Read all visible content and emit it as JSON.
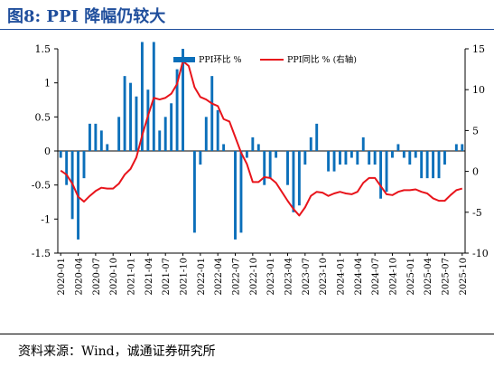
{
  "figure": {
    "title": "图8:   PPI 降幅仍较大",
    "source": "资料来源：Wind，诚通证券研究所"
  },
  "chart_data": {
    "type": "bar+line",
    "categories": [
      "2020-01",
      "2020-02",
      "2020-03",
      "2020-04",
      "2020-05",
      "2020-06",
      "2020-07",
      "2020-08",
      "2020-09",
      "2020-10",
      "2020-11",
      "2020-12",
      "2021-01",
      "2021-02",
      "2021-03",
      "2021-04",
      "2021-05",
      "2021-06",
      "2021-07",
      "2021-08",
      "2021-09",
      "2021-10",
      "2021-11",
      "2021-12",
      "2022-01",
      "2022-02",
      "2022-03",
      "2022-04",
      "2022-05",
      "2022-06",
      "2022-07",
      "2022-08",
      "2022-09",
      "2022-10",
      "2022-11",
      "2022-12",
      "2023-01",
      "2023-02",
      "2023-03",
      "2023-04",
      "2023-05",
      "2023-06",
      "2023-07",
      "2023-08",
      "2023-09",
      "2023-10",
      "2023-11",
      "2023-12",
      "2024-01",
      "2024-02",
      "2024-03",
      "2024-04",
      "2024-05",
      "2024-06",
      "2024-07",
      "2024-08",
      "2024-09",
      "2024-10",
      "2024-11",
      "2024-12",
      "2025-01",
      "2025-02",
      "2025-03",
      "2025-04",
      "2025-05",
      "2025-06",
      "2025-07",
      "2025-08",
      "2025-09",
      "2025-10"
    ],
    "tick_labels": [
      "2020-01",
      "2020-04",
      "2020-07",
      "2020-10",
      "2021-01",
      "2021-04",
      "2021-07",
      "2021-10",
      "2022-01",
      "2022-04",
      "2022-07",
      "2022-10",
      "2023-01",
      "2023-04",
      "2023-07",
      "2023-10",
      "2024-01",
      "2024-04",
      "2024-07",
      "2024-10",
      "2025-01",
      "2025-04",
      "2025-07",
      "2025-10"
    ],
    "series": [
      {
        "name": "PPI环比 %",
        "type": "bar",
        "axis": "left",
        "color": "#0b6fba",
        "values": [
          -0.1,
          -0.5,
          -1.0,
          -1.3,
          -0.4,
          0.4,
          0.4,
          0.3,
          0.1,
          0.0,
          0.5,
          1.1,
          1.0,
          0.8,
          1.6,
          0.9,
          1.6,
          0.3,
          0.5,
          0.7,
          1.2,
          1.5,
          0.0,
          -1.2,
          -0.2,
          0.5,
          1.1,
          0.6,
          0.1,
          0.0,
          -1.3,
          -1.2,
          -0.1,
          0.2,
          0.1,
          -0.5,
          -0.4,
          -0.1,
          0.0,
          -0.5,
          -0.9,
          -0.8,
          -0.2,
          0.2,
          0.4,
          0.0,
          -0.3,
          -0.3,
          -0.2,
          -0.2,
          -0.1,
          -0.2,
          0.2,
          -0.2,
          -0.2,
          -0.7,
          -0.6,
          -0.1,
          0.1,
          -0.1,
          -0.2,
          -0.1,
          -0.4,
          -0.4,
          -0.4,
          -0.4,
          -0.2,
          0.0,
          0.1,
          0.1
        ]
      },
      {
        "name": "PPI同比 % (右轴)",
        "type": "line",
        "axis": "right",
        "color": "#e8141b",
        "values": [
          0.1,
          -0.4,
          -1.5,
          -3.1,
          -3.7,
          -3.0,
          -2.4,
          -2.0,
          -2.1,
          -2.1,
          -1.5,
          -0.4,
          0.3,
          1.7,
          4.4,
          6.8,
          9.0,
          8.8,
          9.0,
          9.5,
          10.7,
          13.5,
          12.9,
          10.3,
          9.1,
          8.8,
          8.3,
          8.0,
          6.4,
          6.1,
          4.2,
          2.3,
          0.9,
          -1.3,
          -1.3,
          -0.7,
          -0.8,
          -1.4,
          -2.5,
          -3.6,
          -4.6,
          -5.4,
          -4.4,
          -3.0,
          -2.5,
          -2.6,
          -3.0,
          -2.7,
          -2.5,
          -2.7,
          -2.8,
          -2.5,
          -1.4,
          -0.8,
          -0.8,
          -1.8,
          -2.8,
          -2.9,
          -2.5,
          -2.3,
          -2.3,
          -2.2,
          -2.5,
          -2.7,
          -3.3,
          -3.6,
          -3.6,
          -2.9,
          -2.3,
          -2.1
        ]
      }
    ],
    "y_left": {
      "min": -1.5,
      "max": 1.5,
      "ticks": [
        "1.5",
        "1",
        "0.5",
        "0",
        "-0.5",
        "-1",
        "-1.5"
      ]
    },
    "y_right": {
      "min": -10,
      "max": 15,
      "ticks": [
        "15",
        "10",
        "5",
        "0",
        "-5",
        "-10"
      ]
    },
    "legend_position": "top-right",
    "grid": false
  }
}
